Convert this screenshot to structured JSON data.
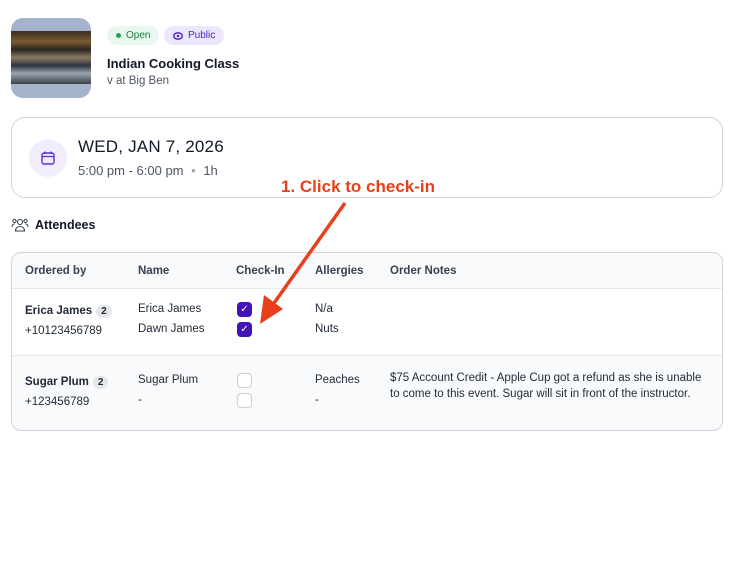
{
  "event": {
    "status": "Open",
    "visibility": "Public",
    "title": "Indian Cooking Class",
    "subtitle": "v at Big Ben"
  },
  "schedule": {
    "date": "WED, JAN 7, 2026",
    "time": "5:00 pm - 6:00 pm",
    "separator": "•",
    "duration": "1h"
  },
  "attendees": {
    "heading": "Attendees",
    "columns": [
      "Ordered by",
      "Name",
      "Check-In",
      "Allergies",
      "Order Notes"
    ],
    "orders": [
      {
        "ordered_by": "Erica James",
        "count": "2",
        "phone": "+10123456789",
        "attendees": [
          {
            "name": "Erica James",
            "checked_in": true,
            "allergies": "N/a"
          },
          {
            "name": "Dawn James",
            "checked_in": true,
            "allergies": "Nuts"
          }
        ],
        "notes": ""
      },
      {
        "ordered_by": "Sugar Plum",
        "count": "2",
        "phone": "+123456789",
        "attendees": [
          {
            "name": "Sugar Plum",
            "checked_in": false,
            "allergies": "Peaches"
          },
          {
            "name": "-",
            "checked_in": false,
            "allergies": "-"
          }
        ],
        "notes": "$75 Account Credit - Apple Cup got a refund as she is unable to come to this event. Sugar will sit in front of the instructor."
      }
    ]
  },
  "annotation": {
    "text": "1. Click to check-in",
    "color": "#e8401c"
  },
  "colors": {
    "accent": "#4312b8",
    "open": "#16803c"
  }
}
